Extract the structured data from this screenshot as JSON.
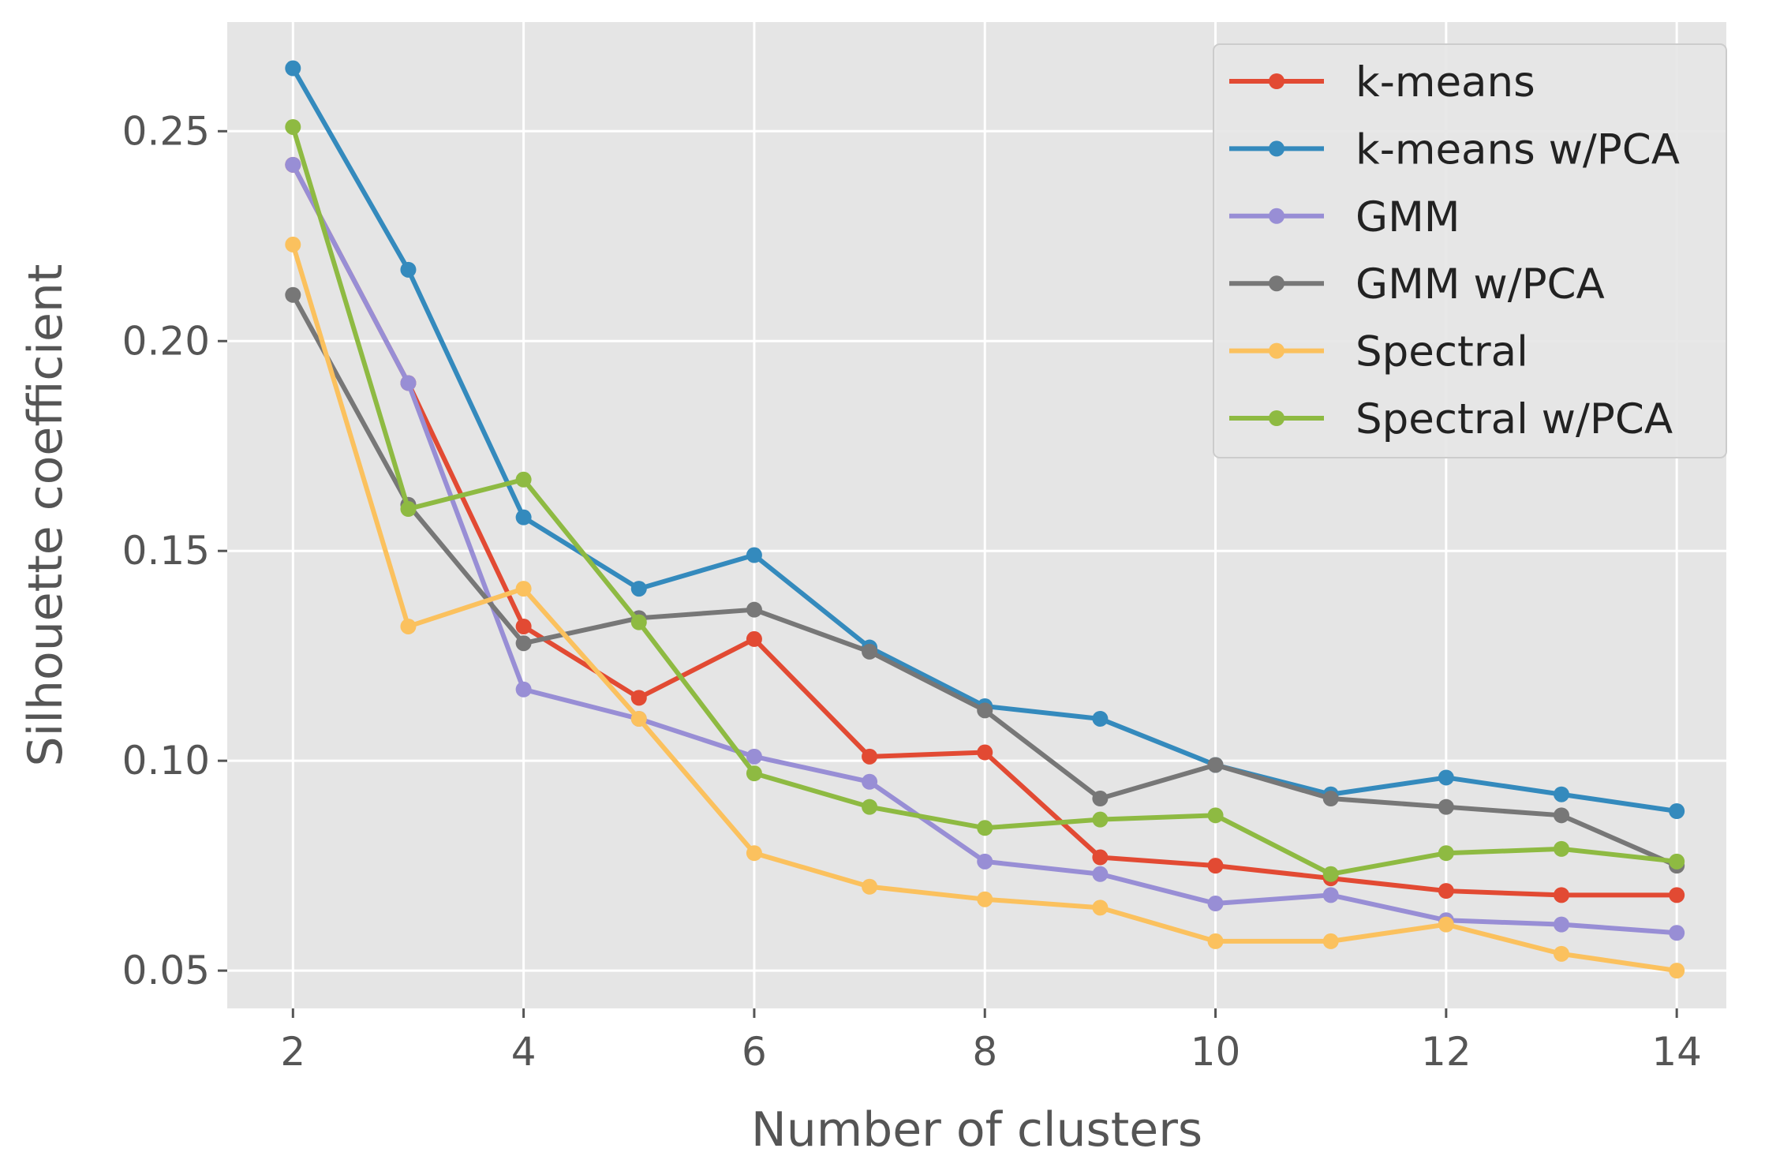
{
  "chart_data": {
    "type": "line",
    "title": "",
    "xlabel": "Number of clusters",
    "ylabel": "Silhouette coefficient",
    "xlim": [
      1.43,
      14.43
    ],
    "ylim": [
      0.041,
      0.276
    ],
    "xticks": [
      2,
      4,
      6,
      8,
      10,
      12,
      14
    ],
    "yticks": [
      0.05,
      0.1,
      0.15,
      0.2,
      0.25
    ],
    "ytick_labels": [
      "0.05",
      "0.10",
      "0.15",
      "0.20",
      "0.25"
    ],
    "grid": true,
    "legend_position": "top-right",
    "x": [
      2,
      3,
      4,
      5,
      6,
      7,
      8,
      9,
      10,
      11,
      12,
      13,
      14
    ],
    "series": [
      {
        "name": "k-means",
        "color": "#e24a33",
        "values": [
          0.242,
          0.19,
          0.132,
          0.115,
          0.129,
          0.101,
          0.102,
          0.077,
          0.075,
          0.072,
          0.069,
          0.068,
          0.068
        ]
      },
      {
        "name": "k-means w/PCA",
        "color": "#348abd",
        "values": [
          0.265,
          0.217,
          0.158,
          0.141,
          0.149,
          0.127,
          0.113,
          0.11,
          0.099,
          0.092,
          0.096,
          0.092,
          0.088
        ]
      },
      {
        "name": "GMM",
        "color": "#988ed5",
        "values": [
          0.242,
          0.19,
          0.117,
          0.11,
          0.101,
          0.095,
          0.076,
          0.073,
          0.066,
          0.068,
          0.062,
          0.061,
          0.059
        ]
      },
      {
        "name": "GMM w/PCA",
        "color": "#777777",
        "values": [
          0.211,
          0.161,
          0.128,
          0.134,
          0.136,
          0.126,
          0.112,
          0.091,
          0.099,
          0.091,
          0.089,
          0.087,
          0.075
        ]
      },
      {
        "name": "Spectral",
        "color": "#fbc15e",
        "values": [
          0.223,
          0.132,
          0.141,
          0.11,
          0.078,
          0.07,
          0.067,
          0.065,
          0.057,
          0.057,
          0.061,
          0.054,
          0.05
        ]
      },
      {
        "name": "Spectral w/PCA",
        "color": "#8eba42",
        "values": [
          0.251,
          0.16,
          0.167,
          0.133,
          0.097,
          0.089,
          0.084,
          0.086,
          0.087,
          0.073,
          0.078,
          0.079,
          0.076
        ]
      }
    ]
  }
}
